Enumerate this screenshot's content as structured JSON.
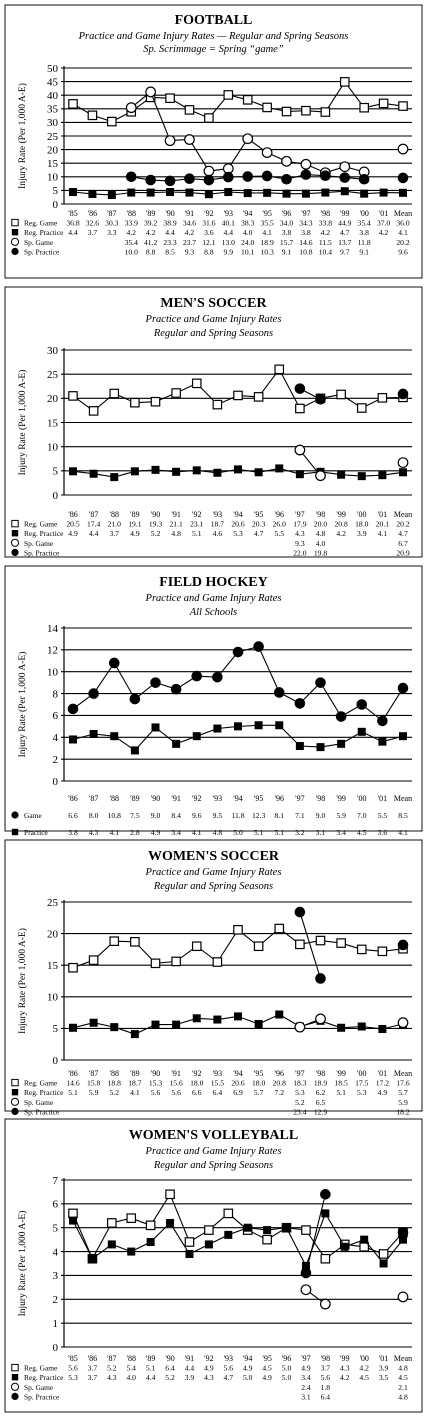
{
  "figure": {
    "y_axis_label": "Injury Rate (Per 1,000 A-E)"
  },
  "chart_data": [
    {
      "type": "line",
      "title": "FOOTBALL",
      "subtitle": [
        "Practice and Game Injury Rates — Regular and Spring Seasons",
        "Sp. Scrimmage = Spring “game”"
      ],
      "ylabel": "Injury Rate (Per 1,000 A-E)",
      "ylim": [
        0,
        50
      ],
      "yticks": [
        0,
        5,
        10,
        15,
        20,
        25,
        30,
        35,
        40,
        45,
        50
      ],
      "categories": [
        "'85",
        "'86",
        "'87",
        "'88",
        "'89",
        "'90",
        "'91",
        "'92",
        "'93",
        "'94",
        "'95",
        "'96",
        "'97",
        "'98",
        "'99",
        "'00",
        "'01",
        "Mean"
      ],
      "grid": true,
      "series": [
        {
          "name": "Reg. Game",
          "marker": "open-square",
          "values": [
            36.8,
            32.6,
            30.3,
            33.9,
            39.2,
            38.9,
            34.6,
            31.6,
            40.1,
            38.3,
            35.5,
            34.0,
            34.3,
            33.8,
            44.9,
            35.4,
            37.0,
            36.0
          ]
        },
        {
          "name": "Reg. Practice",
          "marker": "filled-square",
          "values": [
            4.4,
            3.7,
            3.3,
            4.2,
            4.2,
            4.4,
            4.2,
            3.6,
            4.4,
            4.0,
            4.1,
            3.8,
            3.8,
            4.2,
            4.7,
            3.8,
            4.2,
            4.1
          ]
        },
        {
          "name": "Sp. Game",
          "marker": "open-circle",
          "values": [
            null,
            null,
            null,
            35.4,
            41.2,
            23.3,
            23.7,
            12.1,
            13.0,
            24.0,
            18.9,
            15.7,
            14.6,
            11.5,
            13.7,
            11.8,
            null,
            20.2
          ]
        },
        {
          "name": "Sp. Practice",
          "marker": "filled-circle",
          "values": [
            null,
            null,
            null,
            10.0,
            8.8,
            8.5,
            9.3,
            8.8,
            9.9,
            10.1,
            10.3,
            9.1,
            10.8,
            10.4,
            9.7,
            9.1,
            null,
            9.6
          ]
        }
      ]
    },
    {
      "type": "line",
      "title": "MEN'S SOCCER",
      "subtitle": [
        "Practice and Game Injury Rates",
        "Regular and Spring Seasons"
      ],
      "ylabel": "Injury Rate (Per 1,000 A-E)",
      "ylim": [
        0,
        30
      ],
      "yticks": [
        0,
        5,
        10,
        15,
        20,
        25,
        30
      ],
      "categories": [
        "'86",
        "'87",
        "'88",
        "'89",
        "'90",
        "'91",
        "'92",
        "'93",
        "'94",
        "'95",
        "'96",
        "'97",
        "'98",
        "'99",
        "'00",
        "'01",
        "Mean"
      ],
      "grid": true,
      "series": [
        {
          "name": "Reg. Game",
          "marker": "open-square",
          "values": [
            20.5,
            17.4,
            21.0,
            19.1,
            19.3,
            21.1,
            23.1,
            18.7,
            20.6,
            20.3,
            26.0,
            17.9,
            20.0,
            20.8,
            18.0,
            20.1,
            20.2
          ]
        },
        {
          "name": "Reg. Practice",
          "marker": "filled-square",
          "values": [
            4.9,
            4.4,
            3.7,
            4.9,
            5.2,
            4.8,
            5.1,
            4.6,
            5.3,
            4.7,
            5.5,
            4.3,
            4.8,
            4.2,
            3.9,
            4.1,
            4.7
          ]
        },
        {
          "name": "Sp. Game",
          "marker": "open-circle",
          "values": [
            null,
            null,
            null,
            null,
            null,
            null,
            null,
            null,
            null,
            null,
            null,
            9.3,
            4.0,
            null,
            null,
            null,
            6.7
          ]
        },
        {
          "name": "Sp. Practice",
          "marker": "filled-circle",
          "values": [
            null,
            null,
            null,
            null,
            null,
            null,
            null,
            null,
            null,
            null,
            null,
            22.0,
            19.8,
            null,
            null,
            null,
            20.9
          ]
        }
      ]
    },
    {
      "type": "line",
      "title": "FIELD HOCKEY",
      "subtitle": [
        "Practice and Game Injury Rates",
        "All Schools"
      ],
      "ylabel": "Injury Rate (Per 1,000 A-E)",
      "ylim": [
        0,
        14
      ],
      "yticks": [
        0,
        2,
        4,
        6,
        8,
        10,
        12,
        14
      ],
      "categories": [
        "'86",
        "'87",
        "'88",
        "'89",
        "'90",
        "'91",
        "'92",
        "'93",
        "'94",
        "'95",
        "'96",
        "'97",
        "'98",
        "'99",
        "'00",
        "'01",
        "Mean"
      ],
      "grid": true,
      "series": [
        {
          "name": "Game",
          "marker": "filled-circle",
          "values": [
            6.6,
            8.0,
            10.8,
            7.5,
            9.0,
            8.4,
            9.6,
            9.5,
            11.8,
            12.3,
            8.1,
            7.1,
            9.0,
            5.9,
            7.0,
            5.5,
            8.5
          ]
        },
        {
          "name": "Practice",
          "marker": "filled-square",
          "values": [
            3.8,
            4.3,
            4.1,
            2.8,
            4.9,
            3.4,
            4.1,
            4.8,
            5.0,
            5.1,
            5.1,
            3.2,
            3.1,
            3.4,
            4.5,
            3.6,
            4.1
          ]
        }
      ]
    },
    {
      "type": "line",
      "title": "WOMEN'S SOCCER",
      "subtitle": [
        "Practice and Game Injury Rates",
        "Regular and Spring Seasons"
      ],
      "ylabel": "Injury Rate (Per 1,000 A-E)",
      "ylim": [
        0,
        25
      ],
      "yticks": [
        0,
        5,
        10,
        15,
        20,
        25
      ],
      "categories": [
        "'86",
        "'87",
        "'88",
        "'89",
        "'90",
        "'91",
        "'92",
        "'93",
        "'94",
        "'95",
        "'96",
        "'97",
        "'98",
        "'99",
        "'00",
        "'01",
        "Mean"
      ],
      "grid": true,
      "series": [
        {
          "name": "Reg. Game",
          "marker": "open-square",
          "values": [
            14.6,
            15.8,
            18.8,
            18.7,
            15.3,
            15.6,
            18.0,
            15.5,
            20.6,
            18.0,
            20.8,
            18.3,
            18.9,
            18.5,
            17.5,
            17.2,
            17.6
          ]
        },
        {
          "name": "Reg. Practice",
          "marker": "filled-square",
          "values": [
            5.1,
            5.9,
            5.2,
            4.1,
            5.6,
            5.6,
            6.6,
            6.4,
            6.9,
            5.7,
            7.2,
            5.3,
            6.2,
            5.1,
            5.3,
            4.9,
            5.7
          ]
        },
        {
          "name": "Sp. Game",
          "marker": "open-circle",
          "values": [
            null,
            null,
            null,
            null,
            null,
            null,
            null,
            null,
            null,
            null,
            null,
            5.2,
            6.5,
            null,
            null,
            null,
            5.9
          ]
        },
        {
          "name": "Sp. Practice",
          "marker": "filled-circle",
          "values": [
            null,
            null,
            null,
            null,
            null,
            null,
            null,
            null,
            null,
            null,
            null,
            23.4,
            12.9,
            null,
            null,
            null,
            18.2
          ]
        }
      ]
    },
    {
      "type": "line",
      "title": "WOMEN'S VOLLEYBALL",
      "subtitle": [
        "Practice and Game Injury Rates",
        "Regular and Spring Seasons"
      ],
      "ylabel": "Injury Rate (Per 1,000 A-E)",
      "ylim": [
        0,
        7
      ],
      "yticks": [
        0,
        1,
        2,
        3,
        4,
        5,
        6,
        7
      ],
      "categories": [
        "'85",
        "'86",
        "'87",
        "'88",
        "'89",
        "'90",
        "'91",
        "'92",
        "'93",
        "'94",
        "'95",
        "'96",
        "'97",
        "'98",
        "'99",
        "'00",
        "'01",
        "Mean"
      ],
      "grid": true,
      "series": [
        {
          "name": "Reg. Game",
          "marker": "open-square",
          "values": [
            5.6,
            3.7,
            5.2,
            5.4,
            5.1,
            6.4,
            4.4,
            4.9,
            5.6,
            4.9,
            4.5,
            5.0,
            4.9,
            3.7,
            4.3,
            4.2,
            3.9,
            4.8
          ]
        },
        {
          "name": "Reg. Practice",
          "marker": "filled-square",
          "values": [
            5.3,
            3.7,
            4.3,
            4.0,
            4.4,
            5.2,
            3.9,
            4.3,
            4.7,
            5.0,
            4.9,
            5.0,
            3.4,
            5.6,
            4.2,
            4.5,
            3.5,
            4.5
          ]
        },
        {
          "name": "Sp. Game",
          "marker": "open-circle",
          "values": [
            null,
            null,
            null,
            null,
            null,
            null,
            null,
            null,
            null,
            null,
            null,
            null,
            2.4,
            1.8,
            null,
            null,
            null,
            2.1
          ]
        },
        {
          "name": "Sp. Practice",
          "marker": "filled-circle",
          "values": [
            null,
            null,
            null,
            null,
            null,
            null,
            null,
            null,
            null,
            null,
            null,
            null,
            3.1,
            6.4,
            null,
            null,
            null,
            4.8
          ]
        }
      ]
    }
  ]
}
